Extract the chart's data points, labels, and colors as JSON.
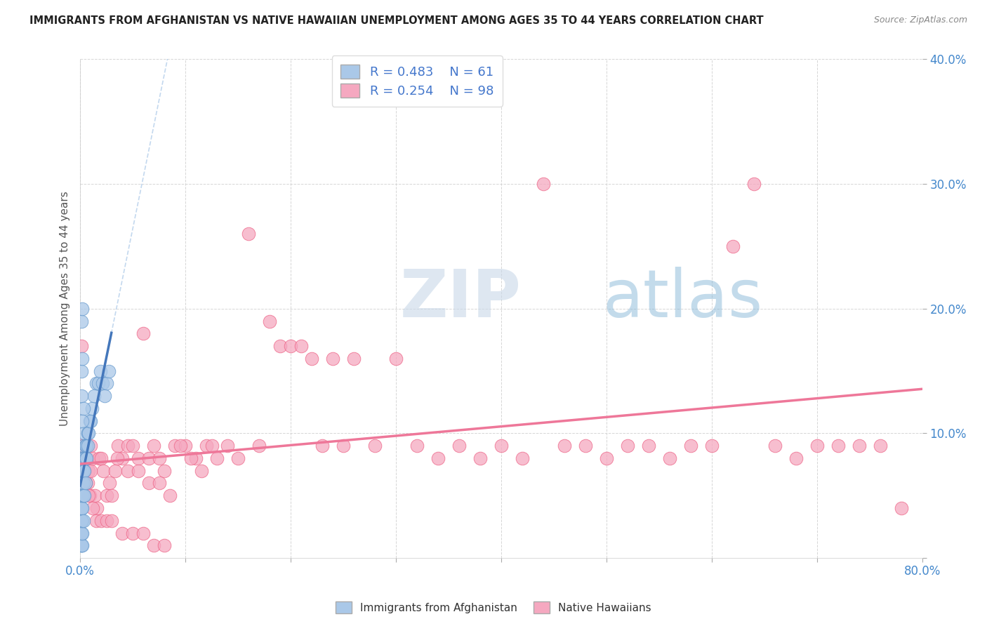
{
  "title": "IMMIGRANTS FROM AFGHANISTAN VS NATIVE HAWAIIAN UNEMPLOYMENT AMONG AGES 35 TO 44 YEARS CORRELATION CHART",
  "source": "Source: ZipAtlas.com",
  "ylabel": "Unemployment Among Ages 35 to 44 years",
  "xlim": [
    0,
    0.8
  ],
  "ylim": [
    0,
    0.4
  ],
  "blue_R": 0.483,
  "blue_N": 61,
  "pink_R": 0.254,
  "pink_N": 98,
  "blue_color": "#aac8e8",
  "pink_color": "#f5a8c0",
  "blue_edge": "#6699cc",
  "pink_edge": "#ee6688",
  "trend_blue_color": "#4477bb",
  "trend_pink_color": "#ee7799",
  "trend_blue_dashed_color": "#aac8e8",
  "legend_label_blue": "Immigrants from Afghanistan",
  "legend_label_pink": "Native Hawaiians",
  "blue_x": [
    0.001,
    0.001,
    0.001,
    0.001,
    0.001,
    0.001,
    0.001,
    0.001,
    0.001,
    0.001,
    0.001,
    0.001,
    0.001,
    0.001,
    0.001,
    0.002,
    0.002,
    0.002,
    0.002,
    0.002,
    0.002,
    0.002,
    0.002,
    0.002,
    0.002,
    0.003,
    0.003,
    0.003,
    0.003,
    0.003,
    0.003,
    0.004,
    0.004,
    0.004,
    0.004,
    0.005,
    0.005,
    0.005,
    0.006,
    0.006,
    0.007,
    0.007,
    0.008,
    0.009,
    0.01,
    0.011,
    0.013,
    0.015,
    0.017,
    0.019,
    0.021,
    0.023,
    0.025,
    0.027,
    0.001,
    0.002,
    0.001,
    0.002,
    0.001,
    0.003,
    0.002
  ],
  "blue_y": [
    0.01,
    0.01,
    0.01,
    0.02,
    0.02,
    0.02,
    0.03,
    0.03,
    0.03,
    0.04,
    0.04,
    0.04,
    0.05,
    0.05,
    0.06,
    0.01,
    0.02,
    0.03,
    0.04,
    0.05,
    0.06,
    0.07,
    0.07,
    0.08,
    0.08,
    0.03,
    0.05,
    0.06,
    0.07,
    0.08,
    0.09,
    0.05,
    0.07,
    0.08,
    0.1,
    0.06,
    0.08,
    0.09,
    0.08,
    0.09,
    0.09,
    0.1,
    0.1,
    0.11,
    0.11,
    0.12,
    0.13,
    0.14,
    0.14,
    0.15,
    0.14,
    0.13,
    0.14,
    0.15,
    0.19,
    0.2,
    0.15,
    0.16,
    0.13,
    0.12,
    0.11
  ],
  "pink_x": [
    0.001,
    0.002,
    0.003,
    0.004,
    0.005,
    0.006,
    0.007,
    0.008,
    0.009,
    0.01,
    0.012,
    0.014,
    0.016,
    0.018,
    0.02,
    0.022,
    0.025,
    0.028,
    0.03,
    0.033,
    0.036,
    0.04,
    0.045,
    0.05,
    0.055,
    0.06,
    0.065,
    0.07,
    0.075,
    0.08,
    0.09,
    0.1,
    0.11,
    0.12,
    0.13,
    0.14,
    0.15,
    0.16,
    0.17,
    0.18,
    0.19,
    0.2,
    0.21,
    0.22,
    0.23,
    0.24,
    0.25,
    0.26,
    0.28,
    0.3,
    0.32,
    0.34,
    0.36,
    0.38,
    0.4,
    0.42,
    0.44,
    0.46,
    0.48,
    0.5,
    0.52,
    0.54,
    0.56,
    0.58,
    0.6,
    0.62,
    0.64,
    0.66,
    0.68,
    0.7,
    0.72,
    0.74,
    0.76,
    0.78,
    0.003,
    0.005,
    0.008,
    0.012,
    0.015,
    0.02,
    0.025,
    0.03,
    0.04,
    0.05,
    0.06,
    0.07,
    0.08,
    0.01,
    0.035,
    0.045,
    0.055,
    0.065,
    0.075,
    0.085,
    0.095,
    0.105,
    0.115,
    0.125
  ],
  "pink_y": [
    0.17,
    0.09,
    0.08,
    0.07,
    0.08,
    0.09,
    0.06,
    0.07,
    0.05,
    0.09,
    0.08,
    0.05,
    0.04,
    0.08,
    0.08,
    0.07,
    0.05,
    0.06,
    0.05,
    0.07,
    0.09,
    0.08,
    0.09,
    0.09,
    0.08,
    0.18,
    0.08,
    0.09,
    0.08,
    0.07,
    0.09,
    0.09,
    0.08,
    0.09,
    0.08,
    0.09,
    0.08,
    0.26,
    0.09,
    0.19,
    0.17,
    0.17,
    0.17,
    0.16,
    0.09,
    0.16,
    0.09,
    0.16,
    0.09,
    0.16,
    0.09,
    0.08,
    0.09,
    0.08,
    0.09,
    0.08,
    0.3,
    0.09,
    0.09,
    0.08,
    0.09,
    0.09,
    0.08,
    0.09,
    0.09,
    0.25,
    0.3,
    0.09,
    0.08,
    0.09,
    0.09,
    0.09,
    0.09,
    0.04,
    0.08,
    0.06,
    0.05,
    0.04,
    0.03,
    0.03,
    0.03,
    0.03,
    0.02,
    0.02,
    0.02,
    0.01,
    0.01,
    0.07,
    0.08,
    0.07,
    0.07,
    0.06,
    0.06,
    0.05,
    0.09,
    0.08,
    0.07,
    0.09
  ]
}
